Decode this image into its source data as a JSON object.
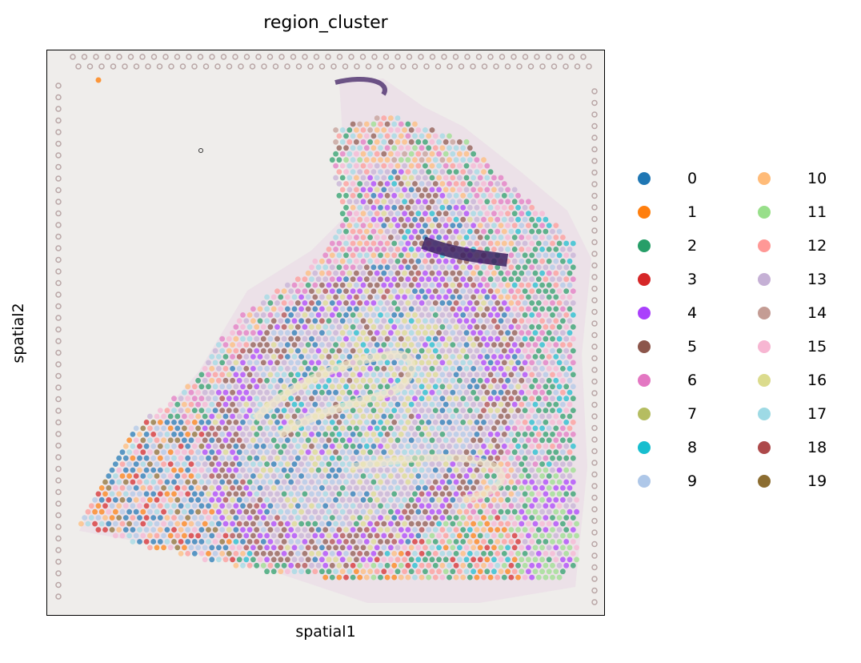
{
  "chart_data": {
    "type": "scatter",
    "title": "region_cluster",
    "xlabel": "spatial1",
    "ylabel": "spatial2",
    "grid": false,
    "ticks": false,
    "legend_position": "right (outside plot)",
    "legend_columns": 2,
    "background": "tissue histology image (H&E, purple/pink stained) behind spots",
    "series": [
      {
        "name": "0",
        "color": "#1f77b4"
      },
      {
        "name": "1",
        "color": "#ff7f0e"
      },
      {
        "name": "2",
        "color": "#279e68"
      },
      {
        "name": "3",
        "color": "#d62728"
      },
      {
        "name": "4",
        "color": "#aa40fc"
      },
      {
        "name": "5",
        "color": "#8c564b"
      },
      {
        "name": "6",
        "color": "#e377c2"
      },
      {
        "name": "7",
        "color": "#b5bd61"
      },
      {
        "name": "8",
        "color": "#17becf"
      },
      {
        "name": "9",
        "color": "#aec7e8"
      },
      {
        "name": "10",
        "color": "#ffbb78"
      },
      {
        "name": "11",
        "color": "#98df8a"
      },
      {
        "name": "12",
        "color": "#ff9896"
      },
      {
        "name": "13",
        "color": "#c5b0d5"
      },
      {
        "name": "14",
        "color": "#c49c94"
      },
      {
        "name": "15",
        "color": "#f7b6d2"
      },
      {
        "name": "16",
        "color": "#dbdb8d"
      },
      {
        "name": "17",
        "color": "#9edae5"
      },
      {
        "name": "18",
        "color": "#ad494a"
      },
      {
        "name": "19",
        "color": "#8c6d31"
      }
    ]
  }
}
